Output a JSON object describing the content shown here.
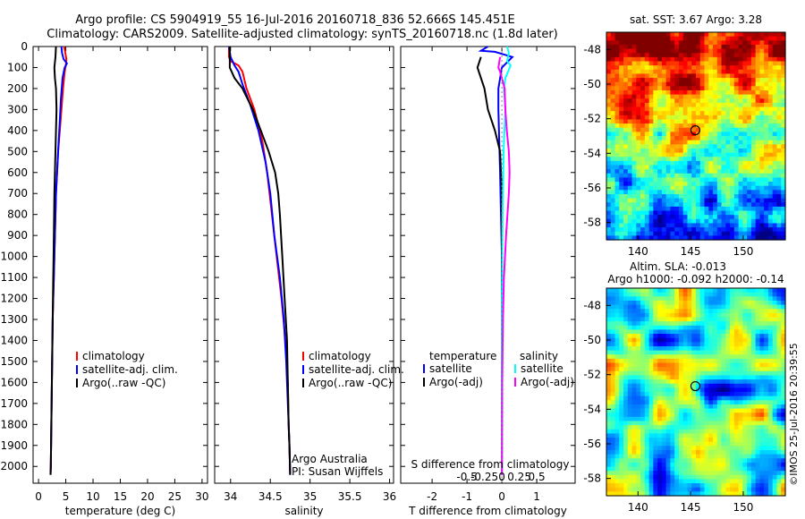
{
  "title": {
    "line1": "Argo profile: CS 5904919_55 16-Jul-2016 20160718_836 52.666S 145.451E",
    "line2": "Climatology: CARS2009. Satellite-adjusted climatology: synTS_20160718.nc (1.8d later)"
  },
  "credit": "Argo Australia",
  "pi": "PI: Susan Wijffels",
  "imos_stamp": "©IMOS 25-Jul-2016 20:39:55",
  "colors": {
    "climatology": "#ff0000",
    "satellite": "#0000ff",
    "argo": "#000000",
    "satellite_salinity": "#00ffff",
    "argo_salinity": "#ff00ff",
    "zero_line": "#888888"
  },
  "chart_data": [
    {
      "type": "line",
      "xlabel": "temperature (deg C)",
      "ylabel": "",
      "xlim": [
        -1,
        31
      ],
      "ylim": [
        2080,
        0
      ],
      "xticks": [
        0,
        5,
        10,
        15,
        20,
        25,
        30
      ],
      "yticks": [
        0,
        100,
        200,
        300,
        400,
        500,
        600,
        700,
        800,
        900,
        1000,
        1100,
        1200,
        1300,
        1400,
        1500,
        1600,
        1700,
        1800,
        1900,
        2000
      ],
      "legend": {
        "placement": "lower-center",
        "entries": [
          "climatology",
          "satellite-adj. clim.",
          "Argo(..raw -QC)"
        ]
      },
      "series": [
        {
          "name": "climatology",
          "color": "#ff0000",
          "points": [
            [
              4.7,
              0
            ],
            [
              4.9,
              30
            ],
            [
              5.1,
              60
            ],
            [
              5.0,
              90
            ],
            [
              4.8,
              120
            ],
            [
              4.5,
              200
            ],
            [
              4.2,
              300
            ],
            [
              3.9,
              400
            ],
            [
              3.6,
              500
            ],
            [
              3.4,
              600
            ],
            [
              3.2,
              700
            ],
            [
              3.1,
              800
            ],
            [
              3.0,
              900
            ],
            [
              2.9,
              1000
            ],
            [
              2.8,
              1100
            ],
            [
              2.7,
              1200
            ],
            [
              2.6,
              1300
            ],
            [
              2.55,
              1400
            ],
            [
              2.5,
              1500
            ],
            [
              2.45,
              1600
            ],
            [
              2.4,
              1700
            ],
            [
              2.35,
              1800
            ],
            [
              2.3,
              1900
            ],
            [
              2.25,
              2000
            ],
            [
              2.2,
              2040
            ]
          ]
        },
        {
          "name": "satellite-adj. clim.",
          "color": "#0000ff",
          "points": [
            [
              4.2,
              0
            ],
            [
              4.3,
              30
            ],
            [
              4.6,
              60
            ],
            [
              5.2,
              80
            ],
            [
              4.8,
              100
            ],
            [
              4.4,
              150
            ],
            [
              4.1,
              250
            ],
            [
              3.9,
              350
            ],
            [
              3.6,
              500
            ],
            [
              3.4,
              600
            ],
            [
              3.2,
              700
            ],
            [
              3.1,
              800
            ],
            [
              3.0,
              900
            ],
            [
              2.9,
              1000
            ],
            [
              2.8,
              1100
            ],
            [
              2.7,
              1200
            ],
            [
              2.6,
              1300
            ],
            [
              2.55,
              1400
            ],
            [
              2.5,
              1500
            ],
            [
              2.45,
              1600
            ],
            [
              2.4,
              1700
            ],
            [
              2.35,
              1800
            ],
            [
              2.3,
              1900
            ],
            [
              2.25,
              2000
            ],
            [
              2.2,
              2040
            ]
          ]
        },
        {
          "name": "Argo(..raw -QC)",
          "color": "#000000",
          "points": [
            [
              3.2,
              0
            ],
            [
              3.1,
              50
            ],
            [
              2.9,
              100
            ],
            [
              3.0,
              150
            ],
            [
              3.2,
              200
            ],
            [
              3.3,
              300
            ],
            [
              3.2,
              400
            ],
            [
              3.1,
              500
            ],
            [
              3.0,
              600
            ],
            [
              2.9,
              700
            ],
            [
              2.85,
              800
            ],
            [
              2.8,
              900
            ],
            [
              2.75,
              1000
            ],
            [
              2.7,
              1100
            ],
            [
              2.65,
              1200
            ],
            [
              2.6,
              1300
            ],
            [
              2.55,
              1400
            ],
            [
              2.5,
              1500
            ],
            [
              2.45,
              1600
            ],
            [
              2.4,
              1700
            ],
            [
              2.35,
              1800
            ],
            [
              2.3,
              1900
            ],
            [
              2.25,
              2000
            ],
            [
              2.2,
              2040
            ]
          ]
        }
      ]
    },
    {
      "type": "line",
      "xlabel": "salinity",
      "ylabel": "",
      "xlim": [
        33.8,
        36.05
      ],
      "ylim": [
        2080,
        0
      ],
      "xticks": [
        34,
        34.5,
        35,
        35.5,
        36
      ],
      "legend": {
        "placement": "lower-right",
        "entries": [
          "climatology",
          "satellite-adj. clim.",
          "Argo(..raw -QC)"
        ]
      },
      "series": [
        {
          "name": "climatology",
          "color": "#ff0000",
          "points": [
            [
              33.98,
              0
            ],
            [
              33.98,
              50
            ],
            [
              34.0,
              70
            ],
            [
              34.1,
              90
            ],
            [
              34.15,
              120
            ],
            [
              34.2,
              200
            ],
            [
              34.3,
              300
            ],
            [
              34.4,
              450
            ],
            [
              34.46,
              600
            ],
            [
              34.52,
              800
            ],
            [
              34.58,
              1000
            ],
            [
              34.64,
              1200
            ],
            [
              34.69,
              1400
            ],
            [
              34.72,
              1600
            ],
            [
              34.73,
              1800
            ],
            [
              34.74,
              1900
            ],
            [
              34.75,
              2040
            ]
          ]
        },
        {
          "name": "satellite-adj. clim.",
          "color": "#0000ff",
          "points": [
            [
              33.98,
              0
            ],
            [
              34.0,
              50
            ],
            [
              34.05,
              90
            ],
            [
              34.1,
              120
            ],
            [
              34.15,
              180
            ],
            [
              34.25,
              280
            ],
            [
              34.35,
              400
            ],
            [
              34.44,
              550
            ],
            [
              34.5,
              700
            ],
            [
              34.55,
              900
            ],
            [
              34.62,
              1100
            ],
            [
              34.67,
              1300
            ],
            [
              34.7,
              1500
            ],
            [
              34.72,
              1700
            ],
            [
              34.73,
              1800
            ],
            [
              34.74,
              1900
            ],
            [
              34.75,
              2040
            ]
          ]
        },
        {
          "name": "Argo(..raw -QC)",
          "color": "#000000",
          "points": [
            [
              33.99,
              0
            ],
            [
              33.99,
              50
            ],
            [
              33.99,
              100
            ],
            [
              34.05,
              150
            ],
            [
              34.15,
              200
            ],
            [
              34.28,
              300
            ],
            [
              34.38,
              400
            ],
            [
              34.48,
              500
            ],
            [
              34.56,
              600
            ],
            [
              34.6,
              700
            ],
            [
              34.62,
              800
            ],
            [
              34.65,
              1000
            ],
            [
              34.68,
              1200
            ],
            [
              34.71,
              1400
            ],
            [
              34.72,
              1600
            ],
            [
              34.73,
              1800
            ],
            [
              34.74,
              1900
            ],
            [
              34.75,
              2040
            ]
          ]
        }
      ]
    },
    {
      "type": "line",
      "xlabel": "T difference from climatology",
      "top_label": "S difference from climatology",
      "xlim": [
        -2.9,
        2.1
      ],
      "xticks": [
        -2,
        -1,
        0,
        1
      ],
      "top_xticks": [
        "-0.5",
        "-0.25",
        "0",
        "0.25",
        "0.5"
      ],
      "legend": {
        "placement": "lower",
        "temperature_title": "temperature",
        "salinity_title": "salinity",
        "entries": [
          "satellite",
          "Argo(-adj)",
          "satellite",
          "Argo(-adj)"
        ]
      },
      "series": [
        {
          "name": "temperature satellite",
          "color": "#0000ff",
          "points": [
            [
              -0.4,
              0
            ],
            [
              -0.6,
              20
            ],
            [
              -0.2,
              25
            ],
            [
              0.3,
              50
            ],
            [
              0.0,
              100
            ],
            [
              -0.1,
              200
            ],
            [
              -0.1,
              300
            ],
            [
              -0.05,
              600
            ],
            [
              0.0,
              1000
            ],
            [
              0.0,
              1500
            ],
            [
              0.0,
              2040
            ]
          ]
        },
        {
          "name": "temperature Argo(-adj)",
          "color": "#000000",
          "points": [
            [
              -0.6,
              50
            ],
            [
              -0.7,
              100
            ],
            [
              -0.6,
              150
            ],
            [
              -0.5,
              200
            ],
            [
              -0.4,
              300
            ],
            [
              -0.2,
              400
            ],
            [
              -0.05,
              500
            ],
            [
              0.0,
              700
            ],
            [
              0.0,
              1000
            ],
            [
              0.0,
              1500
            ],
            [
              0.0,
              2040
            ]
          ]
        },
        {
          "name": "salinity satellite",
          "color": "#00ffff",
          "points": [
            [
              0.15,
              0
            ],
            [
              0.2,
              30
            ],
            [
              0.15,
              70
            ],
            [
              0.25,
              90
            ],
            [
              0.1,
              150
            ],
            [
              0.06,
              200
            ],
            [
              0.1,
              300
            ],
            [
              0.05,
              500
            ],
            [
              0.02,
              800
            ],
            [
              0.0,
              1200
            ],
            [
              0.0,
              2040
            ]
          ]
        },
        {
          "name": "salinity Argo(-adj)",
          "color": "#ff00ff",
          "points": [
            [
              -0.05,
              50
            ],
            [
              -0.1,
              100
            ],
            [
              -0.05,
              120
            ],
            [
              0.0,
              150
            ],
            [
              0.08,
              200
            ],
            [
              0.1,
              300
            ],
            [
              0.14,
              400
            ],
            [
              0.2,
              500
            ],
            [
              0.22,
              600
            ],
            [
              0.2,
              700
            ],
            [
              0.12,
              900
            ],
            [
              0.06,
              1100
            ],
            [
              0.03,
              1300
            ],
            [
              0.01,
              1600
            ],
            [
              0.0,
              2040
            ]
          ]
        }
      ]
    },
    {
      "type": "heatmap",
      "title": "sat. SST: 3.67 Argo: 3.28",
      "xlim": [
        137,
        154
      ],
      "ylim": [
        -59,
        -47
      ],
      "xticks": [
        140,
        145,
        150
      ],
      "yticks": [
        -48,
        -50,
        -52,
        -54,
        -56,
        -58
      ],
      "marker": [
        145.451,
        -52.666
      ]
    },
    {
      "type": "heatmap",
      "title": "Altim. SLA: -0.013",
      "subtitle": "Argo h1000: -0.092 h2000: -0.14",
      "xlim": [
        137,
        154
      ],
      "ylim": [
        -59,
        -47
      ],
      "xticks": [
        140,
        145,
        150
      ],
      "yticks": [
        -48,
        -50,
        -52,
        -54,
        -56,
        -58
      ],
      "marker": [
        145.451,
        -52.666
      ]
    }
  ]
}
